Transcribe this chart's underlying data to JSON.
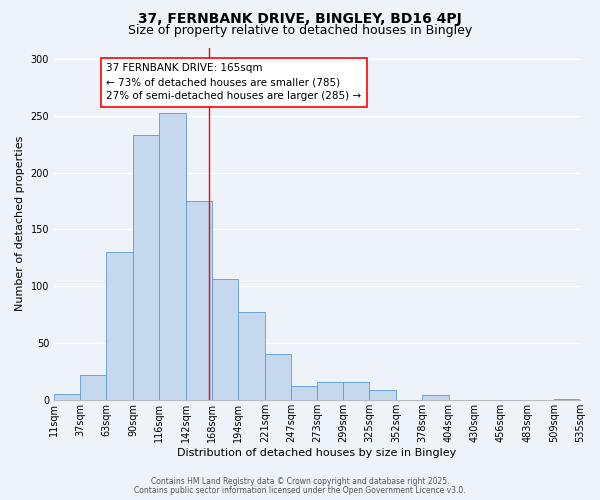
{
  "title_line1": "37, FERNBANK DRIVE, BINGLEY, BD16 4PJ",
  "title_line2": "Size of property relative to detached houses in Bingley",
  "xlabel": "Distribution of detached houses by size in Bingley",
  "ylabel": "Number of detached properties",
  "bin_labels": [
    "11sqm",
    "37sqm",
    "63sqm",
    "90sqm",
    "116sqm",
    "142sqm",
    "168sqm",
    "194sqm",
    "221sqm",
    "247sqm",
    "273sqm",
    "299sqm",
    "325sqm",
    "352sqm",
    "378sqm",
    "404sqm",
    "430sqm",
    "456sqm",
    "483sqm",
    "509sqm",
    "535sqm"
  ],
  "bin_edges": [
    11,
    37,
    63,
    90,
    116,
    142,
    168,
    194,
    221,
    247,
    273,
    299,
    325,
    352,
    378,
    404,
    430,
    456,
    483,
    509,
    535
  ],
  "bar_heights": [
    5,
    22,
    130,
    233,
    252,
    175,
    106,
    77,
    40,
    12,
    16,
    16,
    9,
    0,
    4,
    0,
    0,
    0,
    0,
    1
  ],
  "bar_color": "#c5d8ed",
  "bar_edge_color": "#5b9bd5",
  "vline_x": 165,
  "vline_color": "red",
  "annotation_text": "37 FERNBANK DRIVE: 165sqm\n← 73% of detached houses are smaller (785)\n27% of semi-detached houses are larger (285) →",
  "annotation_box_color": "white",
  "annotation_box_edge_color": "red",
  "ylim": [
    0,
    310
  ],
  "yticks": [
    0,
    50,
    100,
    150,
    200,
    250,
    300
  ],
  "footnote1": "Contains HM Land Registry data © Crown copyright and database right 2025.",
  "footnote2": "Contains public sector information licensed under the Open Government Licence v3.0.",
  "background_color": "#eef2f9",
  "grid_color": "white",
  "title_fontsize": 10,
  "subtitle_fontsize": 9,
  "label_fontsize": 8,
  "tick_fontsize": 7,
  "annotation_fontsize": 7.5,
  "footnote_fontsize": 5.5
}
